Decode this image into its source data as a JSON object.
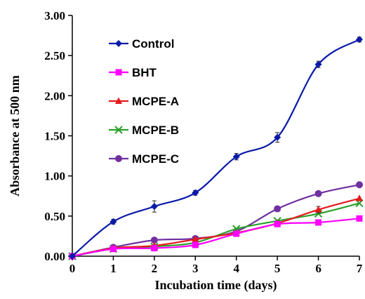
{
  "chart_data": {
    "type": "line",
    "title": "",
    "xlabel": "Incubation time (days)",
    "ylabel": "Absorbance at 500 nm",
    "x": [
      0,
      1,
      2,
      3,
      4,
      5,
      6,
      7
    ],
    "x_tick_labels": [
      "0",
      "1",
      "2",
      "3",
      "4",
      "5",
      "6",
      "7"
    ],
    "y_tick_labels": [
      "0.00",
      "0.50",
      "1.00",
      "1.50",
      "2.00",
      "2.50",
      "3.00"
    ],
    "xlim": [
      0,
      7
    ],
    "ylim": [
      0,
      3
    ],
    "grid": false,
    "legend_position": "top-left",
    "series": [
      {
        "name": "Control",
        "color": "#0a1aa8",
        "marker": "diamond",
        "values": [
          0.0,
          0.43,
          0.62,
          0.79,
          1.24,
          1.48,
          2.39,
          2.7
        ],
        "errors": [
          0.01,
          0.03,
          0.07,
          0.03,
          0.04,
          0.06,
          0.04,
          0.03
        ]
      },
      {
        "name": "BHT",
        "color": "#ff00ff",
        "marker": "square",
        "values": [
          0.0,
          0.09,
          0.1,
          0.14,
          0.28,
          0.4,
          0.42,
          0.47
        ],
        "errors": [
          0.0,
          0.0,
          0.0,
          0.0,
          0.0,
          0.0,
          0.0,
          0.0
        ]
      },
      {
        "name": "MCPE-A",
        "color": "#e41a1c",
        "marker": "triangle",
        "values": [
          0.0,
          0.1,
          0.13,
          0.21,
          0.29,
          0.41,
          0.58,
          0.72
        ],
        "errors": [
          0.0,
          0.0,
          0.0,
          0.0,
          0.0,
          0.0,
          0.04,
          0.0
        ]
      },
      {
        "name": "MCPE-B",
        "color": "#2ca02c",
        "marker": "x",
        "values": [
          0.0,
          0.09,
          0.12,
          0.17,
          0.34,
          0.44,
          0.53,
          0.66
        ],
        "errors": [
          0.0,
          0.0,
          0.0,
          0.0,
          0.0,
          0.0,
          0.0,
          0.0
        ]
      },
      {
        "name": "MCPE-C",
        "color": "#7030a0",
        "marker": "circle",
        "values": [
          0.0,
          0.11,
          0.2,
          0.22,
          0.31,
          0.59,
          0.78,
          0.89
        ],
        "errors": [
          0.0,
          0.0,
          0.0,
          0.0,
          0.0,
          0.0,
          0.0,
          0.0
        ]
      }
    ]
  }
}
